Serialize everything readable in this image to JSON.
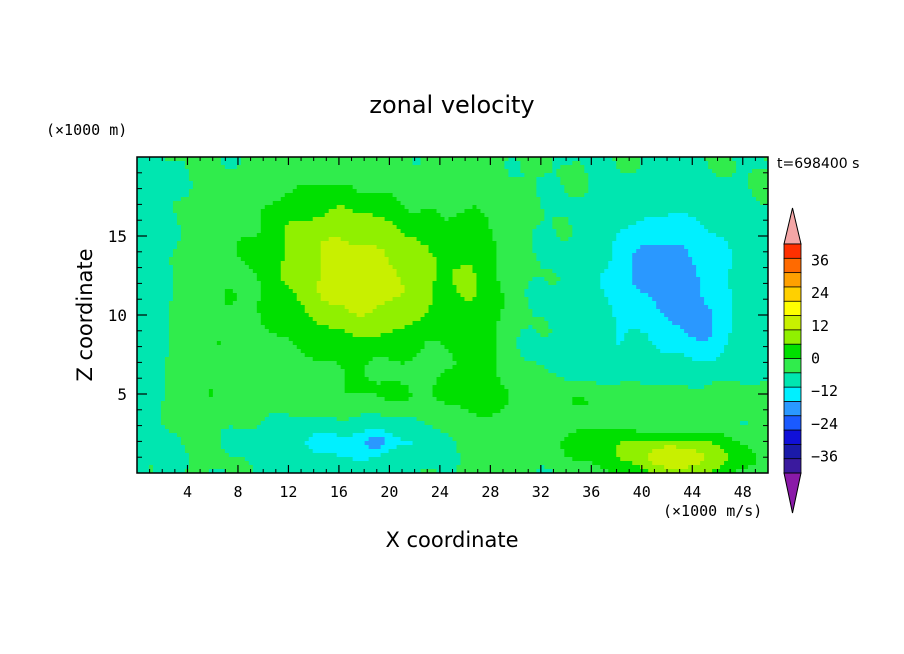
{
  "chart_data": {
    "type": "heatmap",
    "title": "zonal velocity",
    "xlabel": "X coordinate",
    "ylabel": "Z coordinate",
    "x_unit": "(×1000 m/s)",
    "y_unit": "(×1000 m)",
    "time_label": "t=698400 s",
    "xlim": [
      0,
      50
    ],
    "ylim": [
      0,
      20
    ],
    "x_ticks": [
      4,
      8,
      12,
      16,
      20,
      24,
      28,
      32,
      36,
      40,
      44,
      48
    ],
    "x_tick_labels": [
      "4",
      "8",
      "12",
      "16",
      "20",
      "24",
      "28",
      "32",
      "36",
      "40",
      "44",
      "48"
    ],
    "y_ticks": [
      5,
      10,
      15
    ],
    "y_tick_labels": [
      "5",
      "10",
      "15"
    ],
    "colorbar": {
      "levels": [
        -42,
        -36,
        -30,
        -24,
        -18,
        -12,
        -6,
        0,
        6,
        12,
        18,
        24,
        30,
        36,
        42
      ],
      "colors": [
        "#3a1a9e",
        "#1a1aa8",
        "#1010d8",
        "#1a5aff",
        "#2a98ff",
        "#00f0ff",
        "#00e6b0",
        "#30ec4c",
        "#00e000",
        "#90f000",
        "#c8f000",
        "#ffff00",
        "#ffd000",
        "#ffa000",
        "#ff6a00",
        "#ff3000"
      ],
      "tick_values": [
        36,
        24,
        12,
        0,
        -12,
        -24,
        -36
      ],
      "tick_labels": [
        "36",
        "24",
        "12",
        "0",
        "−12",
        "−24",
        "−36"
      ],
      "over_color": "#f4a6a6",
      "under_color": "#8a1aa8"
    },
    "field_description": "u(x,z) contours; positive band x=8-28 km (max ~15 at x=17,z=12), negative region x=36-48 km (min ~-18 at x=42,z=13), near-surface maximum ~16 at x=44"
  }
}
